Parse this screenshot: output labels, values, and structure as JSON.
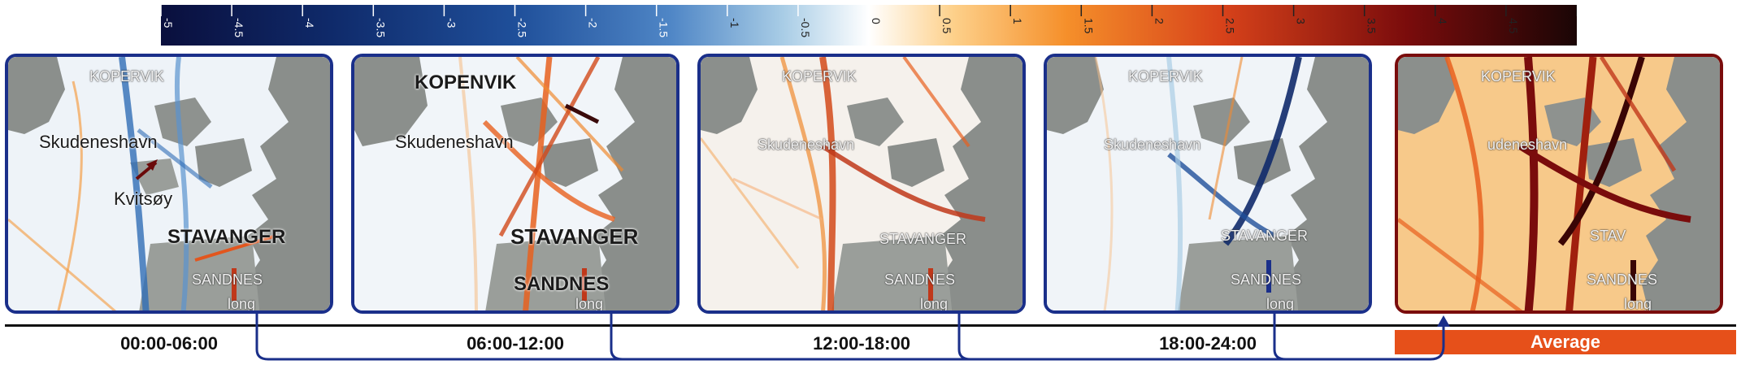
{
  "colorbar": {
    "ticks": [
      "-5",
      "-4.5",
      "-4",
      "-3.5",
      "-3",
      "-2.5",
      "-2",
      "-1.5",
      "-1",
      "-0.5",
      "0",
      "0.5",
      "1",
      "1.5",
      "2",
      "2.5",
      "3",
      "3.5",
      "4",
      "4.5",
      "5"
    ],
    "colors": [
      "#0a0f3d",
      "#0f2a6a",
      "#1f4f9a",
      "#4f86c6",
      "#a9cde6",
      "#ffffff",
      "#fdd08a",
      "#f58f2a",
      "#d7421a",
      "#7a0c0c",
      "#1a0505"
    ]
  },
  "panels": [
    {
      "id": "p1",
      "style": "blue",
      "labels": {
        "kopervik": "KOPERVIK",
        "skudeneshavn": "Skudeneshavn",
        "kvitsoy": "Kvitsøy",
        "stavanger": "STAVANGER",
        "sandnes": "SANDNES",
        "jorpeland": "long"
      }
    },
    {
      "id": "p2",
      "style": "blue",
      "labels": {
        "kopervik": "KOPENVIK",
        "skudeneshavn": "Skudeneshavn",
        "stavanger": "STAVANGER",
        "sandnes": "SANDNES",
        "jorpeland": "long"
      }
    },
    {
      "id": "p3",
      "style": "blue",
      "labels": {
        "kopervik": "KOPERVIK",
        "skudeneshavn": "Skudeneshavn",
        "stavanger": "STAVANGER",
        "sandnes": "SANDNES",
        "jorpeland": "long"
      }
    },
    {
      "id": "p4",
      "style": "blue",
      "labels": {
        "kopervik": "KOPERVIK",
        "skudeneshavn": "Skudeneshavn",
        "stavanger": "STAVANGER",
        "sandnes": "SANDNES",
        "jorpeland": "long"
      }
    },
    {
      "id": "p5",
      "style": "red",
      "labels": {
        "kopervik": "KOPERVIK",
        "skudeneshavn": "udeneshavn",
        "stavanger": "STAV",
        "sandnes": "SANDNES",
        "jorpeland": "long"
      }
    }
  ],
  "timeline": {
    "labels": [
      "00:00-06:00",
      "06:00-12:00",
      "12:00-18:00",
      "18:00-24:00"
    ],
    "average": "Average"
  },
  "colors": {
    "blue_frame": "#1a2f8a",
    "red_frame": "#7a0c0c",
    "average_fill": "#e6501a",
    "arrow": "#1a2f8a"
  }
}
